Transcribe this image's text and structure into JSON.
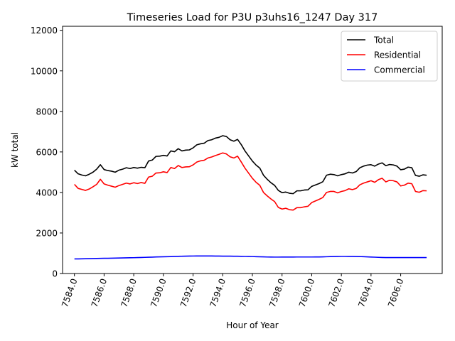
{
  "chart_data": {
    "type": "line",
    "title": "Timeseries Load for P3U p3uhs16_1247  Day 317",
    "xlabel": "Hour of Year",
    "ylabel": "kW total",
    "xlim": [
      7583.2,
      7608.8
    ],
    "ylim": [
      0,
      12200
    ],
    "xticks": [
      7584,
      7586,
      7588,
      7590,
      7592,
      7594,
      7596,
      7598,
      7600,
      7602,
      7604,
      7606
    ],
    "xtick_labels": [
      "7584.0",
      "7586.0",
      "7588.0",
      "7590.0",
      "7592.0",
      "7594.0",
      "7596.0",
      "7598.0",
      "7600.0",
      "7602.0",
      "7604.0",
      "7606.0"
    ],
    "yticks": [
      0,
      2000,
      4000,
      6000,
      8000,
      10000,
      12000
    ],
    "ytick_labels": [
      "0",
      "2000",
      "4000",
      "6000",
      "8000",
      "10000",
      "12000"
    ],
    "legend_position": "top-right",
    "x": [
      7584.0,
      7584.25,
      7584.5,
      7584.75,
      7585.0,
      7585.25,
      7585.5,
      7585.75,
      7586.0,
      7586.25,
      7586.5,
      7586.75,
      7587.0,
      7587.25,
      7587.5,
      7587.75,
      7588.0,
      7588.25,
      7588.5,
      7588.75,
      7589.0,
      7589.25,
      7589.5,
      7589.75,
      7590.0,
      7590.25,
      7590.5,
      7590.75,
      7591.0,
      7591.25,
      7591.5,
      7591.75,
      7592.0,
      7592.25,
      7592.5,
      7592.75,
      7593.0,
      7593.25,
      7593.5,
      7593.75,
      7594.0,
      7594.25,
      7594.5,
      7594.75,
      7595.0,
      7595.25,
      7595.5,
      7595.75,
      7596.0,
      7596.25,
      7596.5,
      7596.75,
      7597.0,
      7597.25,
      7597.5,
      7597.75,
      7598.0,
      7598.25,
      7598.5,
      7598.75,
      7599.0,
      7599.25,
      7599.5,
      7599.75,
      7600.0,
      7600.25,
      7600.5,
      7600.75,
      7601.0,
      7601.25,
      7601.5,
      7601.75,
      7602.0,
      7602.25,
      7602.5,
      7602.75,
      7603.0,
      7603.25,
      7603.5,
      7603.75,
      7604.0,
      7604.25,
      7604.5,
      7604.75,
      7605.0,
      7605.25,
      7605.5,
      7605.75,
      7606.0,
      7606.25,
      7606.5,
      7606.75,
      7607.0,
      7607.25,
      7607.5,
      7607.75
    ],
    "series": [
      {
        "name": "Total",
        "color": "#000000",
        "values": [
          5100,
          4920,
          4860,
          4820,
          4900,
          5000,
          5150,
          5370,
          5130,
          5080,
          5050,
          5000,
          5100,
          5150,
          5220,
          5180,
          5230,
          5200,
          5240,
          5220,
          5550,
          5600,
          5780,
          5790,
          5830,
          5800,
          6050,
          6010,
          6160,
          6050,
          6090,
          6100,
          6200,
          6350,
          6400,
          6430,
          6560,
          6600,
          6680,
          6720,
          6800,
          6760,
          6600,
          6530,
          6620,
          6360,
          6050,
          5800,
          5550,
          5350,
          5200,
          4850,
          4650,
          4480,
          4350,
          4100,
          3990,
          4020,
          3960,
          3940,
          4080,
          4080,
          4120,
          4130,
          4300,
          4370,
          4440,
          4530,
          4850,
          4900,
          4880,
          4820,
          4880,
          4920,
          5000,
          4960,
          5030,
          5220,
          5300,
          5350,
          5370,
          5300,
          5400,
          5460,
          5320,
          5380,
          5360,
          5300,
          5120,
          5150,
          5250,
          5220,
          4840,
          4800,
          4870,
          4850
        ]
      },
      {
        "name": "Residential",
        "color": "#ff0000",
        "values": [
          4400,
          4200,
          4150,
          4100,
          4170,
          4280,
          4400,
          4650,
          4420,
          4360,
          4310,
          4260,
          4340,
          4400,
          4460,
          4420,
          4480,
          4440,
          4490,
          4450,
          4760,
          4800,
          4960,
          4970,
          5020,
          4980,
          5230,
          5180,
          5330,
          5230,
          5260,
          5270,
          5360,
          5500,
          5560,
          5590,
          5700,
          5750,
          5820,
          5880,
          5950,
          5900,
          5760,
          5700,
          5790,
          5500,
          5200,
          4950,
          4700,
          4500,
          4350,
          4000,
          3830,
          3680,
          3550,
          3260,
          3180,
          3220,
          3150,
          3130,
          3250,
          3250,
          3290,
          3320,
          3500,
          3580,
          3660,
          3750,
          4000,
          4050,
          4050,
          3980,
          4050,
          4090,
          4180,
          4140,
          4200,
          4380,
          4460,
          4520,
          4580,
          4500,
          4630,
          4700,
          4520,
          4600,
          4580,
          4520,
          4320,
          4360,
          4460,
          4430,
          4050,
          4010,
          4090,
          4080
        ]
      },
      {
        "name": "Commercial",
        "color": "#0000ff",
        "values": [
          720,
          722,
          725,
          728,
          733,
          738,
          742,
          746,
          750,
          753,
          756,
          760,
          764,
          768,
          772,
          776,
          780,
          786,
          792,
          798,
          804,
          810,
          816,
          820,
          825,
          830,
          836,
          842,
          848,
          852,
          856,
          860,
          863,
          865,
          866,
          866,
          865,
          864,
          862,
          860,
          858,
          856,
          855,
          853,
          851,
          849,
          846,
          842,
          837,
          832,
          826,
          820,
          815,
          812,
          811,
          811,
          812,
          812,
          813,
          814,
          815,
          815,
          815,
          815,
          815,
          816,
          818,
          822,
          828,
          834,
          840,
          844,
          846,
          846,
          845,
          843,
          840,
          836,
          830,
          822,
          814,
          806,
          798,
          792,
          788,
          786,
          785,
          785,
          785,
          785,
          785,
          785,
          785,
          785,
          785,
          785
        ]
      }
    ]
  }
}
